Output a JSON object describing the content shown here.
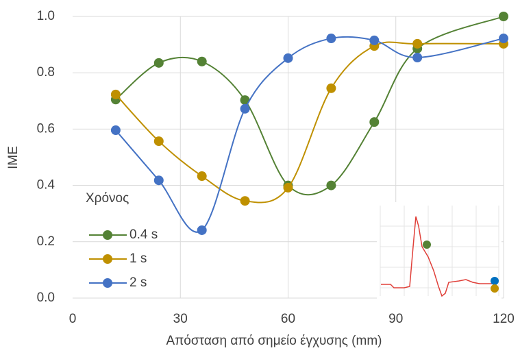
{
  "chart_data": {
    "type": "line",
    "x_label": "Απόσταση από σημείο έγχυσης (mm)",
    "y_label": "IME",
    "legend_title": "Χρόνος",
    "x": [
      12,
      24,
      36,
      48,
      60,
      72,
      84,
      96,
      120
    ],
    "series": [
      {
        "name": "0.4 s",
        "color": "#548235",
        "values": [
          0.705,
          0.835,
          0.84,
          0.703,
          0.4,
          0.4,
          0.625,
          0.886,
          1.0
        ]
      },
      {
        "name": "1 s",
        "color": "#bf9000",
        "values": [
          0.723,
          0.557,
          0.433,
          0.345,
          0.392,
          0.745,
          0.895,
          0.903,
          0.903
        ]
      },
      {
        "name": "2 s",
        "color": "#4472c4",
        "values": [
          0.596,
          0.418,
          0.241,
          0.672,
          0.852,
          0.922,
          0.915,
          0.854,
          0.922
        ]
      }
    ],
    "xlim": [
      0,
      120
    ],
    "xticks": [
      0,
      30,
      60,
      90,
      120
    ],
    "ylim": [
      0,
      1.0
    ],
    "yticks": [
      {
        "value": 0,
        "label": "0.0"
      },
      0.2,
      0.4,
      0.6,
      0.8,
      {
        "value": 1.0,
        "label": "1.0"
      }
    ],
    "grid": true,
    "smooth": true,
    "legend": "lower-left"
  }
}
